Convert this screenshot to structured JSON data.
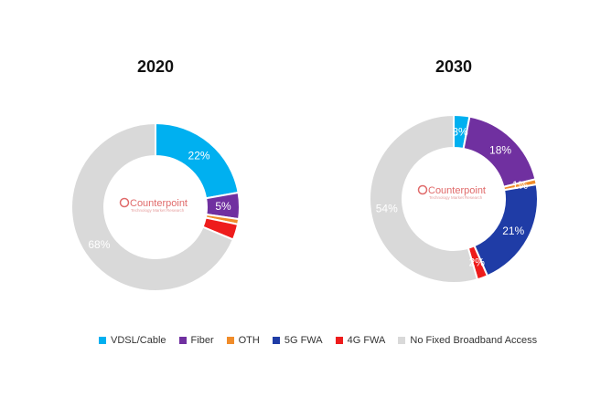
{
  "chart_data": [
    {
      "type": "pie",
      "title": "2020",
      "series": [
        {
          "name": "VDSL/Cable",
          "value": 22,
          "label": "22%"
        },
        {
          "name": "Fiber",
          "value": 5,
          "label": "5%"
        },
        {
          "name": "OTH",
          "value": 1,
          "label": ""
        },
        {
          "name": "5G FWA",
          "value": 0,
          "label": ""
        },
        {
          "name": "4G FWA",
          "value": 3,
          "label": ""
        },
        {
          "name": "No Fixed Broadband Access",
          "value": 68,
          "label": "68%"
        }
      ]
    },
    {
      "type": "pie",
      "title": "2030",
      "series": [
        {
          "name": "VDSL/Cable",
          "value": 3,
          "label": "3%"
        },
        {
          "name": "Fiber",
          "value": 18,
          "label": "18%"
        },
        {
          "name": "OTH",
          "value": 1,
          "label": "1%"
        },
        {
          "name": "5G FWA",
          "value": 21,
          "label": "21%"
        },
        {
          "name": "4G FWA",
          "value": 2,
          "label": "2%"
        },
        {
          "name": "No Fixed Broadband Access",
          "value": 54,
          "label": "54%"
        }
      ]
    }
  ],
  "legend": [
    {
      "name": "VDSL/Cable",
      "color": "#00b0f0"
    },
    {
      "name": "Fiber",
      "color": "#7030a0"
    },
    {
      "name": "OTH",
      "color": "#f08c2a"
    },
    {
      "name": "5G FWA",
      "color": "#1f3ca6"
    },
    {
      "name": "4G FWA",
      "color": "#ee1c1c"
    },
    {
      "name": "No Fixed Broadband Access",
      "color": "#d9d9d9"
    }
  ],
  "watermark": {
    "name": "Counterpoint",
    "subtitle": "Technology Market Research",
    "color": "#e06a6a"
  }
}
